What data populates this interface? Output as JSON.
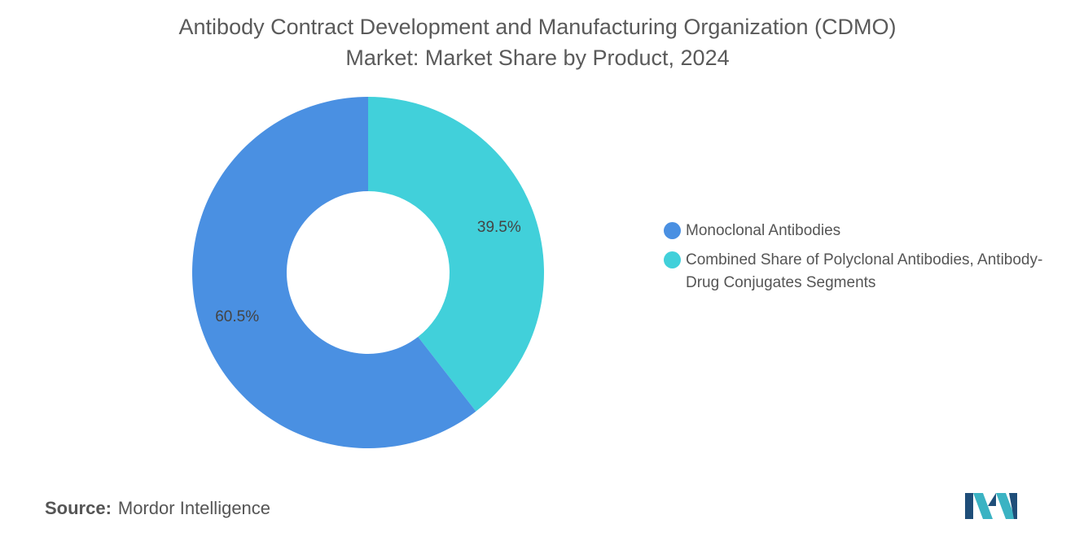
{
  "chart_data": {
    "type": "pie",
    "donut": true,
    "title": "Antibody Contract Development and Manufacturing Organization (CDMO) Market: Market Share by Product, 2024",
    "title_lines": [
      "Antibody Contract Development and Manufacturing Organization (CDMO)",
      "Market: Market Share by Product, 2024"
    ],
    "slices": [
      {
        "name": "Combined Share of Polyclonal Antibodies, Antibody-Drug Conjugates Segments",
        "value": 39.5,
        "label": "39.5%",
        "color": "#41D0DA"
      },
      {
        "name": "Monoclonal Antibodies",
        "value": 60.5,
        "label": "60.5%",
        "color": "#4A90E2"
      }
    ],
    "legend_position": "right",
    "legend": [
      {
        "label": "Monoclonal Antibodies",
        "color": "#4A90E2"
      },
      {
        "label": "Combined Share of Polyclonal Antibodies, Antibody-Drug Conjugates Segments",
        "color": "#41D0DA"
      }
    ]
  },
  "footer": {
    "source_key": "Source:",
    "source_value": "Mordor Intelligence"
  },
  "logo": {
    "icon": "mordor-intelligence-logo",
    "colors": [
      "#1F4E79",
      "#3BB3C3"
    ]
  }
}
